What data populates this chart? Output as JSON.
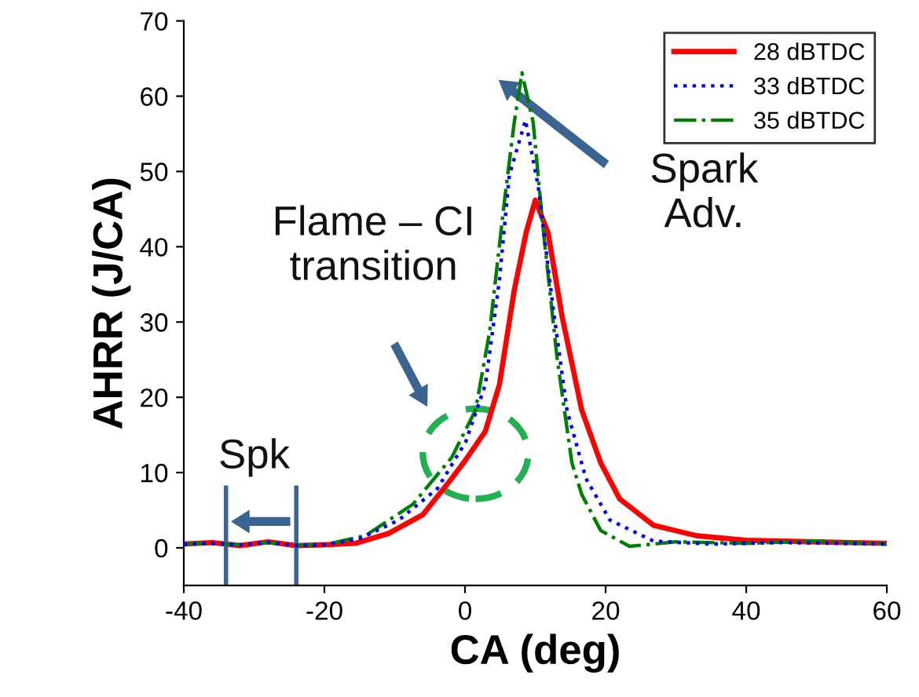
{
  "chart_data": {
    "type": "line",
    "xlabel": "CA (deg)",
    "ylabel": "AHRR (J/CA)",
    "xlim": [
      -40,
      60
    ],
    "ylim": [
      -5,
      70
    ],
    "xticks": [
      -40,
      -20,
      0,
      20,
      40,
      60
    ],
    "yticks": [
      0,
      10,
      20,
      30,
      40,
      50,
      60,
      70
    ],
    "grid": false,
    "legend": "top right",
    "marker": "none",
    "annotations": [
      "Flame – CI\ntransition",
      "Spark\nAdv.",
      "Spk"
    ],
    "series": [
      {
        "name": "28 dBTDC",
        "color": "#ff0000",
        "line_style": "solid",
        "x": [
          -40,
          -36,
          -32,
          -28,
          -24,
          -20,
          -15.6,
          -10.9,
          -6,
          -1.9,
          -0.2,
          2.9,
          4.9,
          7,
          8.7,
          10,
          11.8,
          13.8,
          16.6,
          19.3,
          22,
          26.8,
          33,
          40,
          50,
          60
        ],
        "values": [
          0.5,
          0.7,
          0.3,
          0.8,
          0.3,
          0.4,
          0.6,
          1.9,
          4.4,
          9.2,
          11.3,
          15.5,
          21.7,
          34.2,
          41.9,
          46.2,
          41.9,
          30.8,
          18.3,
          11.3,
          6.5,
          3,
          1.6,
          1,
          0.8,
          0.6
        ]
      },
      {
        "name": "33 dBTDC",
        "color": "#0000ff",
        "line_style": "dotted",
        "x": [
          -40,
          -36,
          -32,
          -28,
          -24,
          -20,
          -15,
          -9.4,
          -3.9,
          0.1,
          2.9,
          4.9,
          6.3,
          8.6,
          10.4,
          12.5,
          14.5,
          17.2,
          20.6,
          26.8,
          35,
          45,
          60
        ],
        "values": [
          0.5,
          0.6,
          0.4,
          0.7,
          0.3,
          0.4,
          1.2,
          3.7,
          7.9,
          14.1,
          21.7,
          35.6,
          49.5,
          56.8,
          48.1,
          32.1,
          18.3,
          9.2,
          3.7,
          0.9,
          0.5,
          0.7,
          0.5
        ]
      },
      {
        "name": "35 dBTDC",
        "color": "#008000",
        "line_style": "dashdot",
        "x": [
          -40,
          -36,
          -32,
          -28,
          -24,
          -20,
          -14.2,
          -7.4,
          -1.9,
          1.5,
          3.5,
          5.6,
          7,
          8.1,
          9.7,
          11.1,
          13.1,
          15.2,
          16.6,
          19.3,
          23.4,
          30,
          40,
          50,
          60
        ],
        "values": [
          0.5,
          0.6,
          0.4,
          0.7,
          0.3,
          0.4,
          1.6,
          5.8,
          12,
          18.3,
          28.7,
          46,
          56.5,
          63.1,
          56.5,
          42.5,
          25.2,
          11.3,
          7.1,
          2.3,
          0.2,
          0.8,
          0.6,
          0.9,
          0.5
        ]
      }
    ]
  }
}
